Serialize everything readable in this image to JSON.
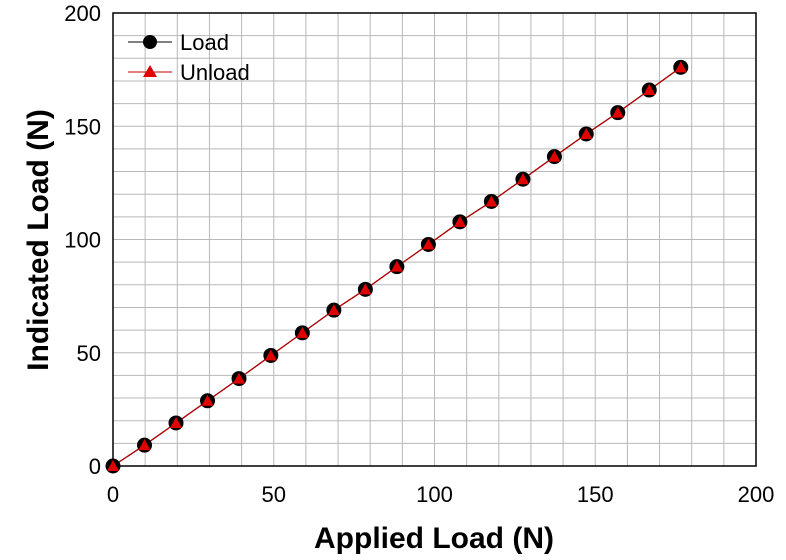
{
  "chart_data": {
    "type": "scatter",
    "xlabel": "Applied Load (N)",
    "ylabel": "Indicated Load (N)",
    "xlim": [
      0,
      200
    ],
    "ylim": [
      0,
      200
    ],
    "xticks": [
      0,
      50,
      100,
      150,
      200
    ],
    "yticks": [
      0,
      50,
      100,
      150,
      200
    ],
    "minor_step": 10,
    "grid": true,
    "legend_position": "top-left",
    "series": [
      {
        "name": "Load",
        "marker": "circle",
        "color": "#000000",
        "line_color": "#000000",
        "x": [
          0,
          9.8,
          19.6,
          29.4,
          39.2,
          49.1,
          58.9,
          68.7,
          78.5,
          88.3,
          98.1,
          107.9,
          117.7,
          127.5,
          137.3,
          147.2,
          157.0,
          166.8,
          176.6
        ],
        "y": [
          0,
          9.2,
          19.0,
          28.8,
          38.6,
          48.8,
          58.8,
          68.8,
          78.0,
          88.0,
          97.8,
          107.8,
          116.8,
          126.6,
          136.6,
          146.6,
          156.0,
          166.0,
          176.0
        ]
      },
      {
        "name": "Unload",
        "marker": "triangle",
        "color": "#e00000",
        "line_color": "#c00000",
        "x": [
          0,
          9.8,
          19.6,
          29.4,
          39.2,
          49.1,
          58.9,
          68.7,
          78.5,
          88.3,
          98.1,
          107.9,
          117.7,
          127.5,
          137.3,
          147.2,
          157.0,
          166.8,
          176.6
        ],
        "y": [
          0,
          9.2,
          19.0,
          28.8,
          38.6,
          48.8,
          58.8,
          68.8,
          78.0,
          88.0,
          97.8,
          107.8,
          116.8,
          126.6,
          136.6,
          146.6,
          156.0,
          166.0,
          176.0
        ]
      }
    ]
  }
}
